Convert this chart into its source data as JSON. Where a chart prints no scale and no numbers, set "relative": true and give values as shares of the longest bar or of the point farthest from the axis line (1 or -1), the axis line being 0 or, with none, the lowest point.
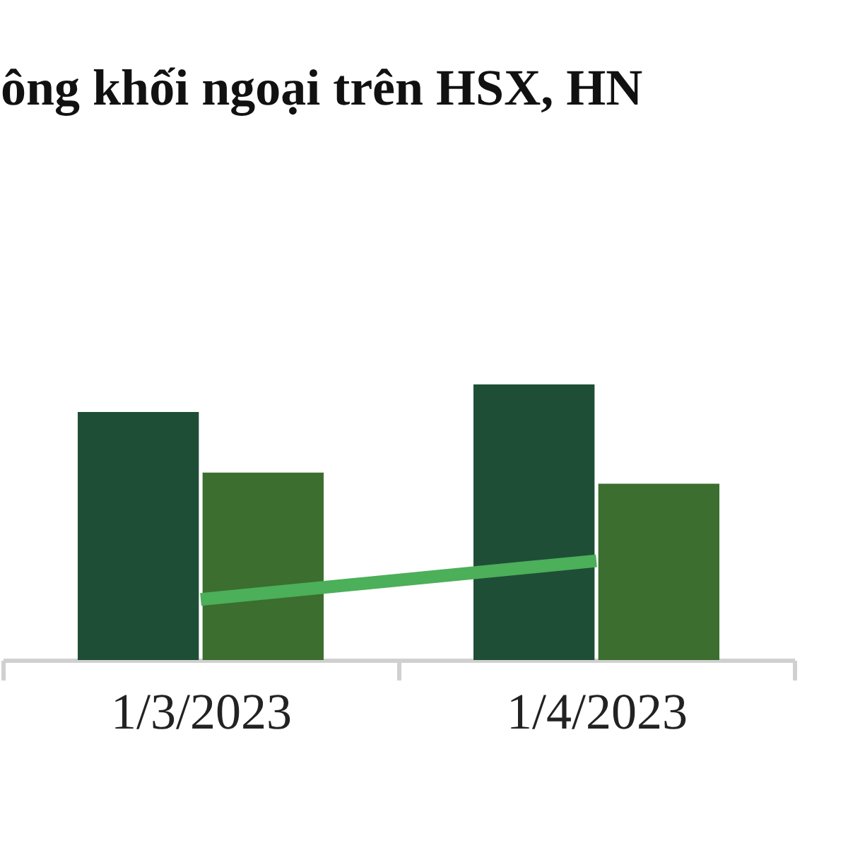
{
  "chart_data": {
    "type": "bar",
    "title": "ông khối ngoại trên HSX, HN",
    "relative": true,
    "categories": [
      "1/3/2023",
      "1/4/2023"
    ],
    "series": [
      {
        "type": "bar",
        "color": "#1f4e37",
        "values": [
          0.9,
          1
        ]
      },
      {
        "type": "bar",
        "color": "#3b6e2f",
        "values": [
          0.68,
          0.64
        ]
      },
      {
        "type": "line",
        "color": "#4caf5a",
        "values": [
          0.22,
          0.36
        ]
      }
    ]
  }
}
